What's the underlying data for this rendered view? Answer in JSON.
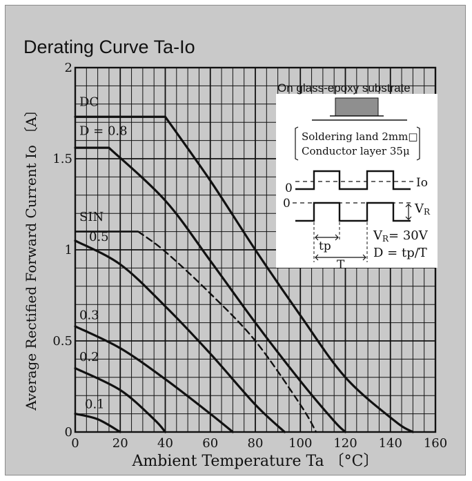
{
  "colors": {
    "panel": "#c9c9c9",
    "ink": "#111111",
    "inset": "#ffffff"
  },
  "chart_data": {
    "type": "line",
    "title": "Derating Curve Ta-Io",
    "xlabel": "Ambient Temperature  Ta 〔°C〕",
    "ylabel": "Average Rectified Forward Current  Io 〔A〕",
    "xlim": [
      0,
      160
    ],
    "ylim": [
      0,
      2
    ],
    "grid": true,
    "x_ticks": [
      "0",
      "20",
      "40",
      "60",
      "80",
      "100",
      "120",
      "140",
      "160"
    ],
    "y_ticks": [
      "0",
      "0.5",
      "1",
      "1.5",
      "2"
    ],
    "annotation": "On glass-epoxy substrate",
    "series": [
      {
        "name": "DC",
        "style": "solid",
        "x": [
          0,
          40,
          60,
          80,
          100,
          120,
          142,
          150
        ],
        "y": [
          1.73,
          1.73,
          1.38,
          1.0,
          0.64,
          0.3,
          0.06,
          0.0
        ]
      },
      {
        "name": "D = 0.8",
        "style": "solid",
        "x": [
          0,
          15,
          40,
          60,
          80,
          100,
          115,
          120
        ],
        "y": [
          1.56,
          1.56,
          1.27,
          0.94,
          0.6,
          0.28,
          0.06,
          0.0
        ]
      },
      {
        "name": "SIN",
        "style": "dashed",
        "x": [
          28,
          40,
          60,
          80,
          100,
          107
        ],
        "y": [
          1.1,
          0.99,
          0.76,
          0.5,
          0.15,
          0.0
        ]
      },
      {
        "name": "0.5",
        "style": "solid",
        "x": [
          0,
          20,
          40,
          60,
          80,
          93
        ],
        "y": [
          1.05,
          0.92,
          0.69,
          0.43,
          0.15,
          0.0
        ]
      },
      {
        "name": "0.3",
        "style": "solid",
        "x": [
          0,
          20,
          40,
          60,
          70
        ],
        "y": [
          0.58,
          0.46,
          0.29,
          0.1,
          0.0
        ]
      },
      {
        "name": "0.2",
        "style": "solid",
        "x": [
          0,
          20,
          35,
          40
        ],
        "y": [
          0.35,
          0.23,
          0.07,
          0.0
        ]
      },
      {
        "name": "0.1",
        "style": "solid",
        "x": [
          0,
          10,
          20
        ],
        "y": [
          0.1,
          0.07,
          0.0
        ]
      }
    ],
    "reference_lines": [
      {
        "label": "DC",
        "y": 1.73,
        "x": [
          0,
          40
        ]
      },
      {
        "label": "SIN",
        "y": 1.1,
        "x": [
          0,
          28
        ]
      }
    ],
    "inset": {
      "lines": [
        "Soldering land 2mm□",
        "Conductor layer 35μ"
      ],
      "labels": {
        "zero_top": "0",
        "zero_bottom": "0",
        "io": "Io",
        "vr": "V",
        "vr_sub": "R",
        "tp": "tp",
        "period": "T",
        "vr_eq": "V",
        "vr_eq_sub": "R",
        "vr_eq_val": "= 30V",
        "duty": "D = tp/T"
      }
    }
  }
}
